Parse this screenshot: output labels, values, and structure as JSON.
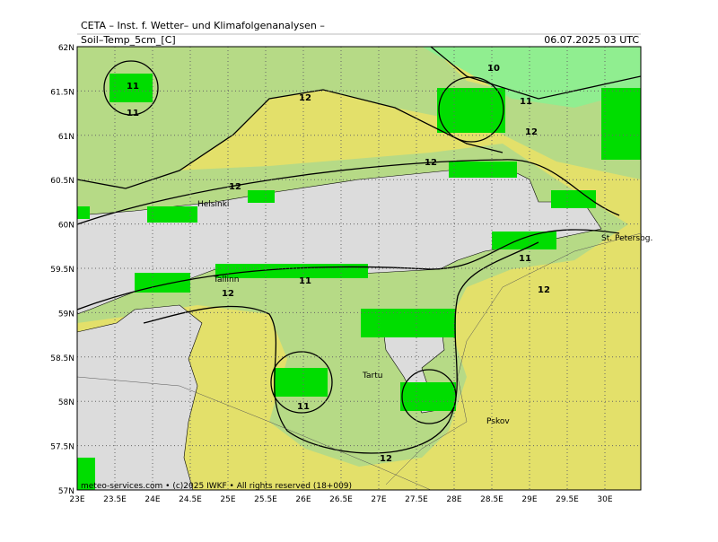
{
  "header": {
    "title": "CETA – Inst. f. Wetter– und Klimafolgenanalysen –",
    "field": "Soil–Temp_5cm_[C]",
    "date": "06.07.2025 03 UTC"
  },
  "map": {
    "lat_labels": [
      "62N",
      "61.5N",
      "61N",
      "60.5N",
      "60N",
      "59.5N",
      "59N",
      "58.5N",
      "58N",
      "57.5N",
      "57N"
    ],
    "lon_labels": [
      "23E",
      "23.5E",
      "24E",
      "24.5E",
      "25E",
      "25.5E",
      "26E",
      "26.5E",
      "27E",
      "27.5E",
      "28E",
      "28.5E",
      "29E",
      "29.5E",
      "30E"
    ],
    "places": [
      "Helsinki",
      "Tallinn",
      "Tartu",
      "Pskov",
      "St. Petersbg."
    ],
    "contour_labels": [
      "10",
      "11",
      "12",
      "11",
      "12",
      "12",
      "12",
      "11",
      "11",
      "12",
      "11",
      "12",
      "11",
      "12"
    ]
  },
  "footer": "meteo-services.com • (c)2025 IWKF • All rights reserved (18+009)"
}
